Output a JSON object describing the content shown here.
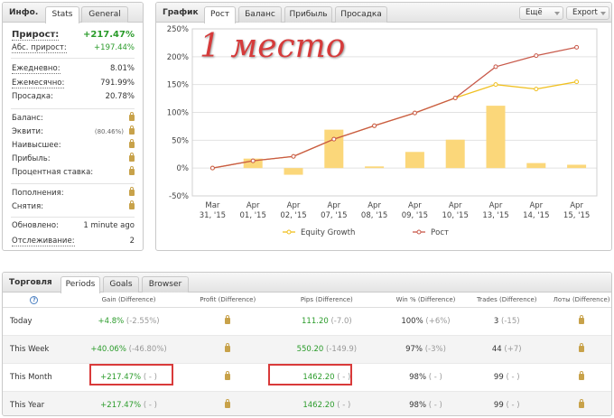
{
  "info": {
    "title": "Инфо.",
    "tabs": [
      "Stats",
      "General"
    ],
    "gain_label": "Прирост:",
    "gain_value": "+217.47%",
    "abs_gain_label": "Абс. прирост:",
    "abs_gain_value": "+197.44%",
    "daily_label": "Ежедневно:",
    "daily_value": "8.01%",
    "monthly_label": "Ежемесячно:",
    "monthly_value": "791.99%",
    "drawdown_label": "Просадка:",
    "drawdown_value": "20.78%",
    "balance_label": "Баланс:",
    "equity_label": "Эквити:",
    "equity_pct": "(80.46%)",
    "highest_label": "Наивысшее:",
    "profit_label": "Прибыль:",
    "interest_label": "Процентная ставка:",
    "deposits_label": "Пополнения:",
    "withdrawals_label": "Снятия:",
    "updated_label": "Обновлено:",
    "updated_value": "1 minute ago",
    "tracking_label": "Отслеживание:",
    "tracking_value": "2"
  },
  "graph": {
    "title": "График",
    "tabs": [
      "Рост",
      "Баланс",
      "Прибыль",
      "Просадка"
    ],
    "buttons": [
      "Ещё",
      "Export"
    ],
    "overlay_text": "1 место"
  },
  "chart_data": {
    "type": "bar",
    "categories": [
      "Mar 31, '15",
      "Apr 01, '15",
      "Apr 02, '15",
      "Apr 07, '15",
      "Apr 08, '15",
      "Apr 09, '15",
      "Apr 10, '15",
      "Apr 13, '15",
      "Apr 14, '15",
      "Apr 15, '15"
    ],
    "series": [
      {
        "name": "",
        "type": "bar",
        "values": [
          0,
          17,
          -12,
          69,
          3,
          29,
          51,
          112,
          9,
          6
        ],
        "color": "#fbd77a"
      },
      {
        "name": "Equity Growth",
        "type": "line",
        "values": [
          0,
          13,
          21,
          52,
          76,
          99,
          126,
          150,
          142,
          155
        ],
        "color": "#f0c020"
      },
      {
        "name": "Рост",
        "type": "line",
        "values": [
          0,
          13,
          21,
          52,
          76,
          99,
          126,
          182,
          202,
          217
        ],
        "color": "#c8594a"
      }
    ],
    "yticks": [
      "250%",
      "200%",
      "150%",
      "100%",
      "50%",
      "0%",
      "-50%"
    ],
    "ylim": [
      -50,
      250
    ],
    "grid": true,
    "legend": "bottom"
  },
  "trade": {
    "title": "Торговля",
    "tabs": [
      "Periods",
      "Goals",
      "Browser"
    ],
    "help": "?",
    "headers": [
      "Gain (Difference)",
      "Profit (Difference)",
      "Pips (Difference)",
      "Win % (Difference)",
      "Trades (Difference)",
      "Лоты (Difference)"
    ],
    "rows": [
      {
        "period": "Today",
        "gain": "+4.8%",
        "gain_diff": "(-2.55%)",
        "pips": "111.20",
        "pips_diff": "(-7.0)",
        "win": "100%",
        "win_diff": "(+6%)",
        "trades": "3",
        "trades_diff": "(-15)"
      },
      {
        "period": "This Week",
        "gain": "+40.06%",
        "gain_diff": "(-46.80%)",
        "pips": "550.20",
        "pips_diff": "(-149.9)",
        "win": "97%",
        "win_diff": "(-3%)",
        "trades": "44",
        "trades_diff": "(+7)"
      },
      {
        "period": "This Month",
        "gain": "+217.47%",
        "gain_diff": "( - )",
        "pips": "1462.20",
        "pips_diff": "( - )",
        "win": "98%",
        "win_diff": "( - )",
        "trades": "99",
        "trades_diff": "( - )"
      },
      {
        "period": "This Year",
        "gain": "+217.47%",
        "gain_diff": "( - )",
        "pips": "1462.20",
        "pips_diff": "( - )",
        "win": "98%",
        "win_diff": "( - )",
        "trades": "99",
        "trades_diff": "( - )"
      }
    ]
  }
}
